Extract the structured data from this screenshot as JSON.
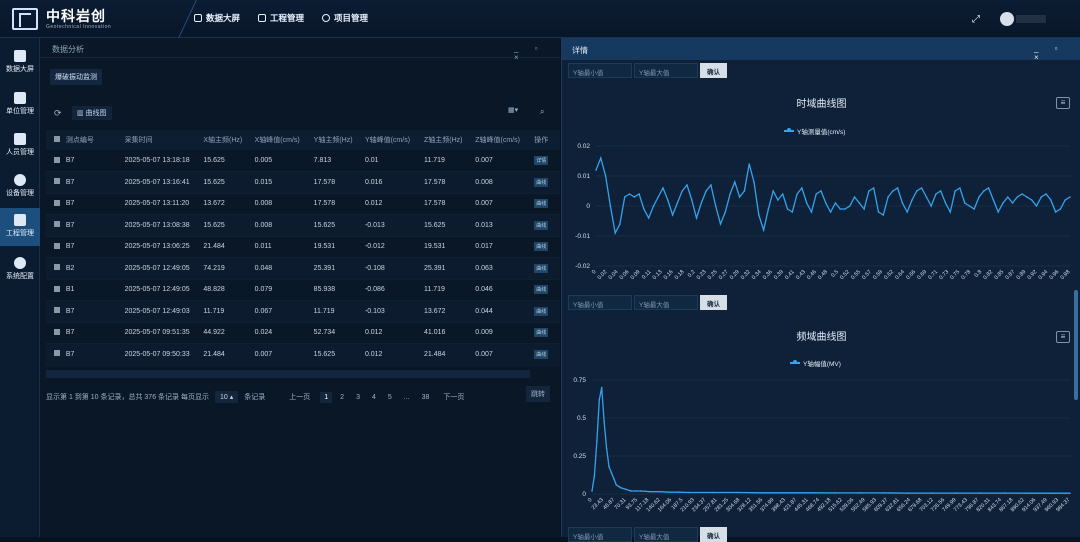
{
  "brand": {
    "name": "中科岩创",
    "subtitle": "Geotechnical Innovation"
  },
  "topnav": [
    "数据大屏",
    "工程管理",
    "项目管理"
  ],
  "sidebar": [
    "数据大屏",
    "单位管理",
    "人员管理",
    "设备管理",
    "工程管理",
    "系统配置"
  ],
  "left_panel": {
    "title": "数据分析",
    "subtab": "爆破振动监测",
    "curve_button": "曲线图",
    "columns": [
      "测点编号",
      "采集时间",
      "X轴主频(Hz)",
      "X轴峰值(cm/s)",
      "Y轴主频(Hz)",
      "Y轴峰值(cm/s)",
      "Z轴主频(Hz)",
      "Z轴峰值(cm/s)",
      "操作"
    ],
    "rows": [
      [
        "B7",
        "2025-05-07 13:18:18",
        "15.625",
        "0.005",
        "7.813",
        "0.01",
        "11.719",
        "0.007"
      ],
      [
        "B7",
        "2025-05-07 13:16:41",
        "15.625",
        "0.015",
        "17.578",
        "0.016",
        "17.578",
        "0.008"
      ],
      [
        "B7",
        "2025-05-07 13:11:20",
        "13.672",
        "0.008",
        "17.578",
        "0.012",
        "17.578",
        "0.007"
      ],
      [
        "B7",
        "2025-05-07 13:08:38",
        "15.625",
        "0.008",
        "15.625",
        "-0.013",
        "15.625",
        "0.013"
      ],
      [
        "B7",
        "2025-05-07 13:06:25",
        "21.484",
        "0.011",
        "19.531",
        "-0.012",
        "19.531",
        "0.017"
      ],
      [
        "B2",
        "2025-05-07 12:49:05",
        "74.219",
        "0.048",
        "25.391",
        "-0.108",
        "25.391",
        "0.063"
      ],
      [
        "B1",
        "2025-05-07 12:49:05",
        "48.828",
        "0.079",
        "85.938",
        "-0.086",
        "11.719",
        "0.046"
      ],
      [
        "B7",
        "2025-05-07 12:49:03",
        "11.719",
        "0.067",
        "11.719",
        "-0.103",
        "13.672",
        "0.044"
      ],
      [
        "B7",
        "2025-05-07 09:51:35",
        "44.922",
        "0.024",
        "52.734",
        "0.012",
        "41.016",
        "0.009"
      ],
      [
        "B7",
        "2025-05-07 09:50:33",
        "21.484",
        "0.007",
        "15.625",
        "0.012",
        "21.484",
        "0.007"
      ]
    ],
    "op_detail": "详情",
    "op_chart": "曲线",
    "pager": {
      "summary": "显示第 1 到第 10 条记录，总共 376 条记录 每页显示",
      "size": "10",
      "size_suffix": "条记录",
      "prev": "上一页",
      "pages": [
        "1",
        "2",
        "3",
        "4",
        "5",
        "...",
        "38"
      ],
      "next": "下一页",
      "goto": "跳转"
    }
  },
  "right_panel": {
    "title": "详情",
    "ymin_placeholder": "Y轴最小值",
    "ymax_placeholder": "Y轴最大值",
    "confirm": "确认"
  },
  "chart_data": [
    {
      "type": "line",
      "title": "时域曲线图",
      "series": [
        {
          "name": "Y轴测量值(cm/s)"
        }
      ],
      "ylim": [
        -0.02,
        0.02
      ],
      "yticks": [
        "0.02",
        "0.01",
        "0",
        "-0.01",
        "-0.02"
      ],
      "xticks": [
        "0",
        "0.02",
        "0.04",
        "0.06",
        "0.09",
        "0.11",
        "0.13",
        "0.16",
        "0.18",
        "0.2",
        "0.23",
        "0.25",
        "0.27",
        "0.29",
        "0.32",
        "0.34",
        "0.36",
        "0.39",
        "0.41",
        "0.43",
        "0.46",
        "0.48",
        "0.5",
        "0.52",
        "0.55",
        "0.57",
        "0.59",
        "0.62",
        "0.64",
        "0.66",
        "0.69",
        "0.71",
        "0.73",
        "0.75",
        "0.78",
        "0.8",
        "0.82",
        "0.85",
        "0.87",
        "0.89",
        "0.92",
        "0.94",
        "0.96",
        "0.98"
      ],
      "x": [
        0,
        0.01,
        0.02,
        0.03,
        0.04,
        0.05,
        0.06,
        0.07,
        0.08,
        0.09,
        0.1,
        0.11,
        0.12,
        0.13,
        0.14,
        0.15,
        0.16,
        0.17,
        0.18,
        0.19,
        0.2,
        0.21,
        0.22,
        0.23,
        0.24,
        0.25,
        0.26,
        0.27,
        0.28,
        0.29,
        0.3,
        0.31,
        0.32,
        0.33,
        0.34,
        0.35,
        0.36,
        0.37,
        0.38,
        0.39,
        0.4,
        0.41,
        0.42,
        0.43,
        0.44,
        0.45,
        0.46,
        0.47,
        0.48,
        0.49,
        0.5,
        0.51,
        0.52,
        0.53,
        0.54,
        0.55,
        0.56,
        0.57,
        0.58,
        0.59,
        0.6,
        0.61,
        0.62,
        0.63,
        0.64,
        0.65,
        0.66,
        0.67,
        0.68,
        0.69,
        0.7,
        0.71,
        0.72,
        0.73,
        0.74,
        0.75,
        0.76,
        0.77,
        0.78,
        0.79,
        0.8,
        0.81,
        0.82,
        0.83,
        0.84,
        0.85,
        0.86,
        0.87,
        0.88,
        0.89,
        0.9,
        0.91,
        0.92,
        0.93,
        0.94,
        0.95,
        0.96,
        0.97,
        0.98,
        0.99
      ],
      "y": [
        0.012,
        0.016,
        0.01,
        0.0,
        -0.009,
        -0.006,
        0.003,
        0.004,
        0.003,
        0.004,
        -0.001,
        -0.004,
        0.0,
        0.003,
        0.006,
        0.002,
        -0.003,
        0.001,
        0.005,
        0.007,
        0.002,
        -0.004,
        0.001,
        0.005,
        0.007,
        0.0,
        -0.006,
        -0.002,
        0.004,
        0.008,
        0.003,
        0.005,
        0.014,
        0.008,
        -0.003,
        -0.008,
        -0.001,
        0.005,
        0.002,
        0.004,
        -0.001,
        -0.002,
        0.004,
        0.006,
        0.001,
        -0.002,
        0.004,
        0.005,
        0.001,
        -0.002,
        0.001,
        -0.001,
        -0.001,
        0.0,
        0.003,
        0.001,
        -0.001,
        0.005,
        0.006,
        -0.002,
        -0.003,
        0.003,
        0.005,
        0.006,
        0.001,
        -0.002,
        0.002,
        0.005,
        0.006,
        0.003,
        0.0,
        0.004,
        0.005,
        0.001,
        -0.002,
        0.005,
        0.006,
        0.001,
        0.0,
        -0.001,
        0.003,
        0.005,
        0.006,
        0.002,
        -0.002,
        0.001,
        0.003,
        0.001,
        0.003,
        0.004,
        0.003,
        0.002,
        0.0,
        0.003,
        0.004,
        0.002,
        -0.002,
        -0.001,
        0.002,
        0.003
      ]
    },
    {
      "type": "line",
      "title": "频域曲线图",
      "series": [
        {
          "name": "Y轴幅值(MV)"
        }
      ],
      "ylim": [
        0,
        0.75
      ],
      "yticks": [
        "0.75",
        "0.5",
        "0.25",
        "0"
      ],
      "xticks": [
        "0",
        "23.43",
        "46.87",
        "70.31",
        "93.75",
        "117.18",
        "140.62",
        "164.06",
        "187.5",
        "210.93",
        "234.37",
        "257.81",
        "281.25",
        "304.68",
        "328.12",
        "351.56",
        "374.99",
        "398.43",
        "421.87",
        "445.31",
        "468.74",
        "492.18",
        "515.62",
        "539.06",
        "562.49",
        "585.93",
        "609.37",
        "632.81",
        "656.24",
        "679.68",
        "703.12",
        "726.56",
        "749.99",
        "773.43",
        "796.87",
        "820.31",
        "843.74",
        "867.18",
        "890.62",
        "914.06",
        "937.49",
        "960.93",
        "984.37"
      ],
      "x": [
        0,
        5,
        10,
        15,
        20,
        25,
        30,
        35,
        40,
        45,
        50,
        55,
        60,
        70,
        80,
        90,
        100,
        120,
        140,
        160,
        180,
        200,
        250,
        300,
        350,
        400,
        450,
        500,
        550,
        600,
        650,
        700,
        750,
        800,
        850,
        900,
        950,
        984
      ],
      "y": [
        0.02,
        0.12,
        0.35,
        0.62,
        0.7,
        0.48,
        0.3,
        0.18,
        0.14,
        0.1,
        0.06,
        0.05,
        0.04,
        0.03,
        0.02,
        0.02,
        0.02,
        0.015,
        0.015,
        0.012,
        0.012,
        0.01,
        0.01,
        0.01,
        0.008,
        0.008,
        0.008,
        0.007,
        0.007,
        0.007,
        0.006,
        0.006,
        0.006,
        0.006,
        0.006,
        0.005,
        0.005,
        0.005
      ]
    }
  ]
}
